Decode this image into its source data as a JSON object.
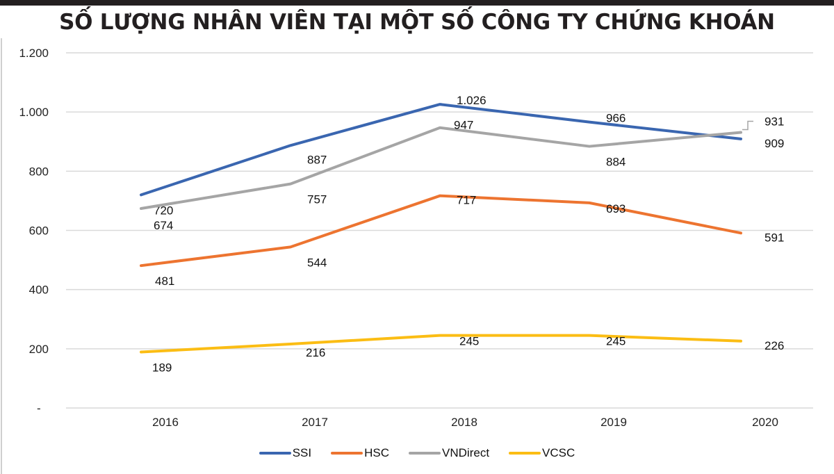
{
  "chart_data": {
    "type": "line",
    "title": "SỐ LƯỢNG NHÂN VIÊN TẠI MỘT SỐ CÔNG TY CHỨNG KHOÁN",
    "categories": [
      "2016",
      "2017",
      "2018",
      "2019",
      "2020"
    ],
    "ylim": [
      0,
      1200
    ],
    "y_ticks": [
      0,
      200,
      400,
      600,
      800,
      1000,
      1200
    ],
    "y_tick_labels": [
      "-",
      "200",
      "400",
      "600",
      "800",
      "1.000",
      "1.200"
    ],
    "grid": true,
    "legend_position": "bottom",
    "series": [
      {
        "name": "SSI",
        "color": "#3a66b0",
        "values": [
          720,
          887,
          1026,
          966,
          909
        ],
        "labels": [
          "720",
          "887",
          "1.026",
          "966",
          "909"
        ]
      },
      {
        "name": "HSC",
        "color": "#ed7430",
        "values": [
          481,
          544,
          717,
          693,
          591
        ],
        "labels": [
          "481",
          "544",
          "717",
          "693",
          "591"
        ]
      },
      {
        "name": "VNDirect",
        "color": "#a5a5a5",
        "values": [
          674,
          757,
          947,
          884,
          931
        ],
        "labels": [
          "674",
          "757",
          "947",
          "884",
          "931"
        ]
      },
      {
        "name": "VCSC",
        "color": "#fbbd14",
        "values": [
          189,
          216,
          245,
          245,
          226
        ],
        "labels": [
          "189",
          "216",
          "245",
          "245",
          "226"
        ]
      }
    ]
  }
}
